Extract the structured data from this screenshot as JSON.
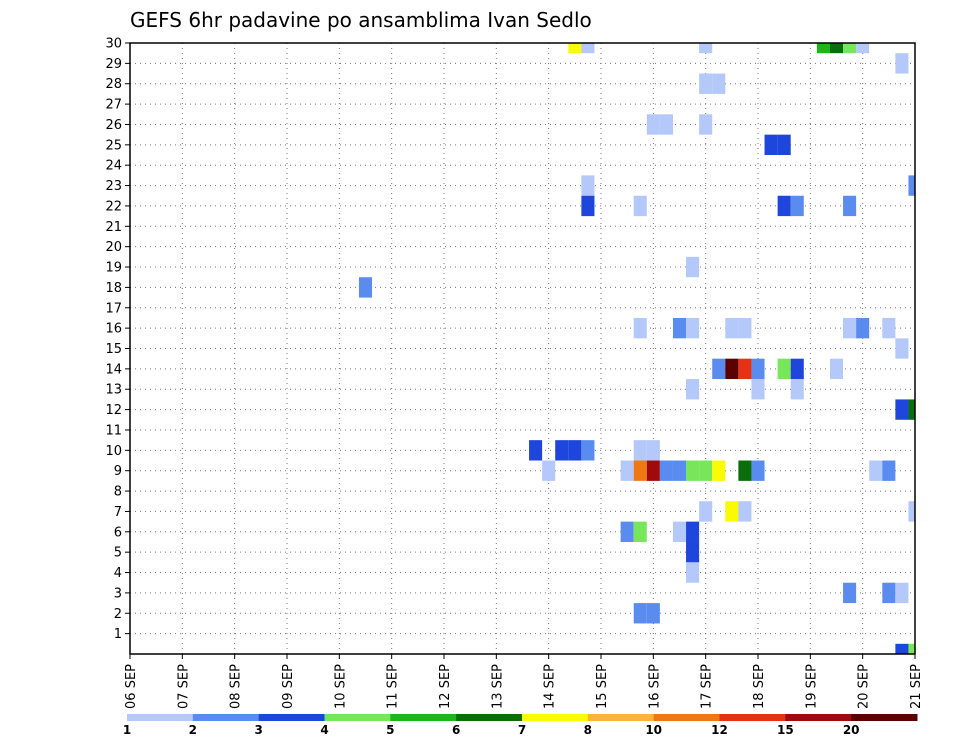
{
  "chart_data": {
    "type": "heatmap",
    "title": "GEFS 6hr padavine po ansamblima Ivan Sedlo",
    "xlabel": "",
    "ylabel": "",
    "x_unit": "6-hour step",
    "x_range": [
      0,
      60
    ],
    "y_range": [
      0,
      30
    ],
    "grid": true,
    "x_tick_labels": [
      {
        "step": 0,
        "label": "06 SEP"
      },
      {
        "step": 4,
        "label": "07 SEP"
      },
      {
        "step": 8,
        "label": "08 SEP"
      },
      {
        "step": 12,
        "label": "09 SEP"
      },
      {
        "step": 16,
        "label": "10 SEP"
      },
      {
        "step": 20,
        "label": "11 SEP"
      },
      {
        "step": 24,
        "label": "12 SEP"
      },
      {
        "step": 28,
        "label": "13 SEP"
      },
      {
        "step": 32,
        "label": "14 SEP"
      },
      {
        "step": 36,
        "label": "15 SEP"
      },
      {
        "step": 40,
        "label": "16 SEP"
      },
      {
        "step": 44,
        "label": "17 SEP"
      },
      {
        "step": 48,
        "label": "18 SEP"
      },
      {
        "step": 52,
        "label": "19 SEP"
      },
      {
        "step": 56,
        "label": "20 SEP"
      },
      {
        "step": 60,
        "label": "21 SEP"
      }
    ],
    "y_tick_labels": [
      "1",
      "2",
      "3",
      "4",
      "5",
      "6",
      "7",
      "8",
      "9",
      "10",
      "11",
      "12",
      "13",
      "14",
      "15",
      "16",
      "17",
      "18",
      "19",
      "20",
      "21",
      "22",
      "23",
      "24",
      "25",
      "26",
      "27",
      "28",
      "29",
      "30"
    ],
    "legend": {
      "placement": "bottom",
      "classes": [
        {
          "color": "#b4c8fa",
          "label": "1"
        },
        {
          "color": "#5a8cf0",
          "label": "2"
        },
        {
          "color": "#1e46dc",
          "label": "3"
        },
        {
          "color": "#78e65a",
          "label": "4"
        },
        {
          "color": "#1eb41e",
          "label": "5"
        },
        {
          "color": "#0a6e0a",
          "label": "6"
        },
        {
          "color": "#fafa00",
          "label": "7"
        },
        {
          "color": "#fab43c",
          "label": "8"
        },
        {
          "color": "#f07814",
          "label": "10"
        },
        {
          "color": "#e63214",
          "label": "12"
        },
        {
          "color": "#a00a0a",
          "label": "15"
        },
        {
          "color": "#5a0000",
          "label": "20"
        }
      ]
    },
    "cells": [
      {
        "t": 34,
        "m": 30,
        "c": 6
      },
      {
        "t": 35,
        "m": 30,
        "c": 0
      },
      {
        "t": 44,
        "m": 30,
        "c": 0
      },
      {
        "t": 53,
        "m": 30,
        "c": 4
      },
      {
        "t": 54,
        "m": 30,
        "c": 5
      },
      {
        "t": 55,
        "m": 30,
        "c": 3
      },
      {
        "t": 56,
        "m": 30,
        "c": 0
      },
      {
        "t": 59,
        "m": 29,
        "c": 0
      },
      {
        "t": 44,
        "m": 28,
        "c": 0
      },
      {
        "t": 45,
        "m": 28,
        "c": 0
      },
      {
        "t": 40,
        "m": 26,
        "c": 0
      },
      {
        "t": 41,
        "m": 26,
        "c": 0
      },
      {
        "t": 44,
        "m": 26,
        "c": 0
      },
      {
        "t": 49,
        "m": 25,
        "c": 2
      },
      {
        "t": 50,
        "m": 25,
        "c": 2
      },
      {
        "t": 35,
        "m": 23,
        "c": 0
      },
      {
        "t": 60,
        "m": 23,
        "c": 1
      },
      {
        "t": 35,
        "m": 22,
        "c": 2
      },
      {
        "t": 39,
        "m": 22,
        "c": 0
      },
      {
        "t": 50,
        "m": 22,
        "c": 2
      },
      {
        "t": 51,
        "m": 22,
        "c": 1
      },
      {
        "t": 55,
        "m": 22,
        "c": 1
      },
      {
        "t": 43,
        "m": 19,
        "c": 0
      },
      {
        "t": 18,
        "m": 18,
        "c": 1
      },
      {
        "t": 39,
        "m": 16,
        "c": 0
      },
      {
        "t": 42,
        "m": 16,
        "c": 1
      },
      {
        "t": 43,
        "m": 16,
        "c": 0
      },
      {
        "t": 46,
        "m": 16,
        "c": 0
      },
      {
        "t": 47,
        "m": 16,
        "c": 0
      },
      {
        "t": 55,
        "m": 16,
        "c": 0
      },
      {
        "t": 56,
        "m": 16,
        "c": 1
      },
      {
        "t": 58,
        "m": 16,
        "c": 0
      },
      {
        "t": 59,
        "m": 15,
        "c": 0
      },
      {
        "t": 45,
        "m": 14,
        "c": 1
      },
      {
        "t": 46,
        "m": 14,
        "c": 11
      },
      {
        "t": 47,
        "m": 14,
        "c": 9
      },
      {
        "t": 48,
        "m": 14,
        "c": 1
      },
      {
        "t": 50,
        "m": 14,
        "c": 3
      },
      {
        "t": 51,
        "m": 14,
        "c": 2
      },
      {
        "t": 54,
        "m": 14,
        "c": 0
      },
      {
        "t": 43,
        "m": 13,
        "c": 0
      },
      {
        "t": 48,
        "m": 13,
        "c": 0
      },
      {
        "t": 51,
        "m": 13,
        "c": 0
      },
      {
        "t": 59,
        "m": 12,
        "c": 2
      },
      {
        "t": 60,
        "m": 12,
        "c": 5
      },
      {
        "t": 31,
        "m": 10,
        "c": 2
      },
      {
        "t": 33,
        "m": 10,
        "c": 2
      },
      {
        "t": 34,
        "m": 10,
        "c": 2
      },
      {
        "t": 35,
        "m": 10,
        "c": 1
      },
      {
        "t": 39,
        "m": 10,
        "c": 0
      },
      {
        "t": 40,
        "m": 10,
        "c": 0
      },
      {
        "t": 32,
        "m": 9,
        "c": 0
      },
      {
        "t": 38,
        "m": 9,
        "c": 0
      },
      {
        "t": 39,
        "m": 9,
        "c": 8
      },
      {
        "t": 40,
        "m": 9,
        "c": 10
      },
      {
        "t": 41,
        "m": 9,
        "c": 1
      },
      {
        "t": 42,
        "m": 9,
        "c": 1
      },
      {
        "t": 43,
        "m": 9,
        "c": 3
      },
      {
        "t": 44,
        "m": 9,
        "c": 3
      },
      {
        "t": 45,
        "m": 9,
        "c": 6
      },
      {
        "t": 47,
        "m": 9,
        "c": 5
      },
      {
        "t": 48,
        "m": 9,
        "c": 1
      },
      {
        "t": 57,
        "m": 9,
        "c": 0
      },
      {
        "t": 58,
        "m": 9,
        "c": 1
      },
      {
        "t": 44,
        "m": 7,
        "c": 0
      },
      {
        "t": 46,
        "m": 7,
        "c": 6
      },
      {
        "t": 47,
        "m": 7,
        "c": 0
      },
      {
        "t": 60,
        "m": 7,
        "c": 0
      },
      {
        "t": 38,
        "m": 6,
        "c": 1
      },
      {
        "t": 39,
        "m": 6,
        "c": 3
      },
      {
        "t": 42,
        "m": 6,
        "c": 0
      },
      {
        "t": 43,
        "m": 6,
        "c": 2
      },
      {
        "t": 43,
        "m": 5,
        "c": 2
      },
      {
        "t": 43,
        "m": 4,
        "c": 0
      },
      {
        "t": 55,
        "m": 3,
        "c": 1
      },
      {
        "t": 58,
        "m": 3,
        "c": 1
      },
      {
        "t": 59,
        "m": 3,
        "c": 0
      },
      {
        "t": 39,
        "m": 2,
        "c": 1
      },
      {
        "t": 40,
        "m": 2,
        "c": 1
      },
      {
        "t": 59,
        "m": 0,
        "c": 2
      },
      {
        "t": 60,
        "m": 0,
        "c": 3
      }
    ]
  }
}
